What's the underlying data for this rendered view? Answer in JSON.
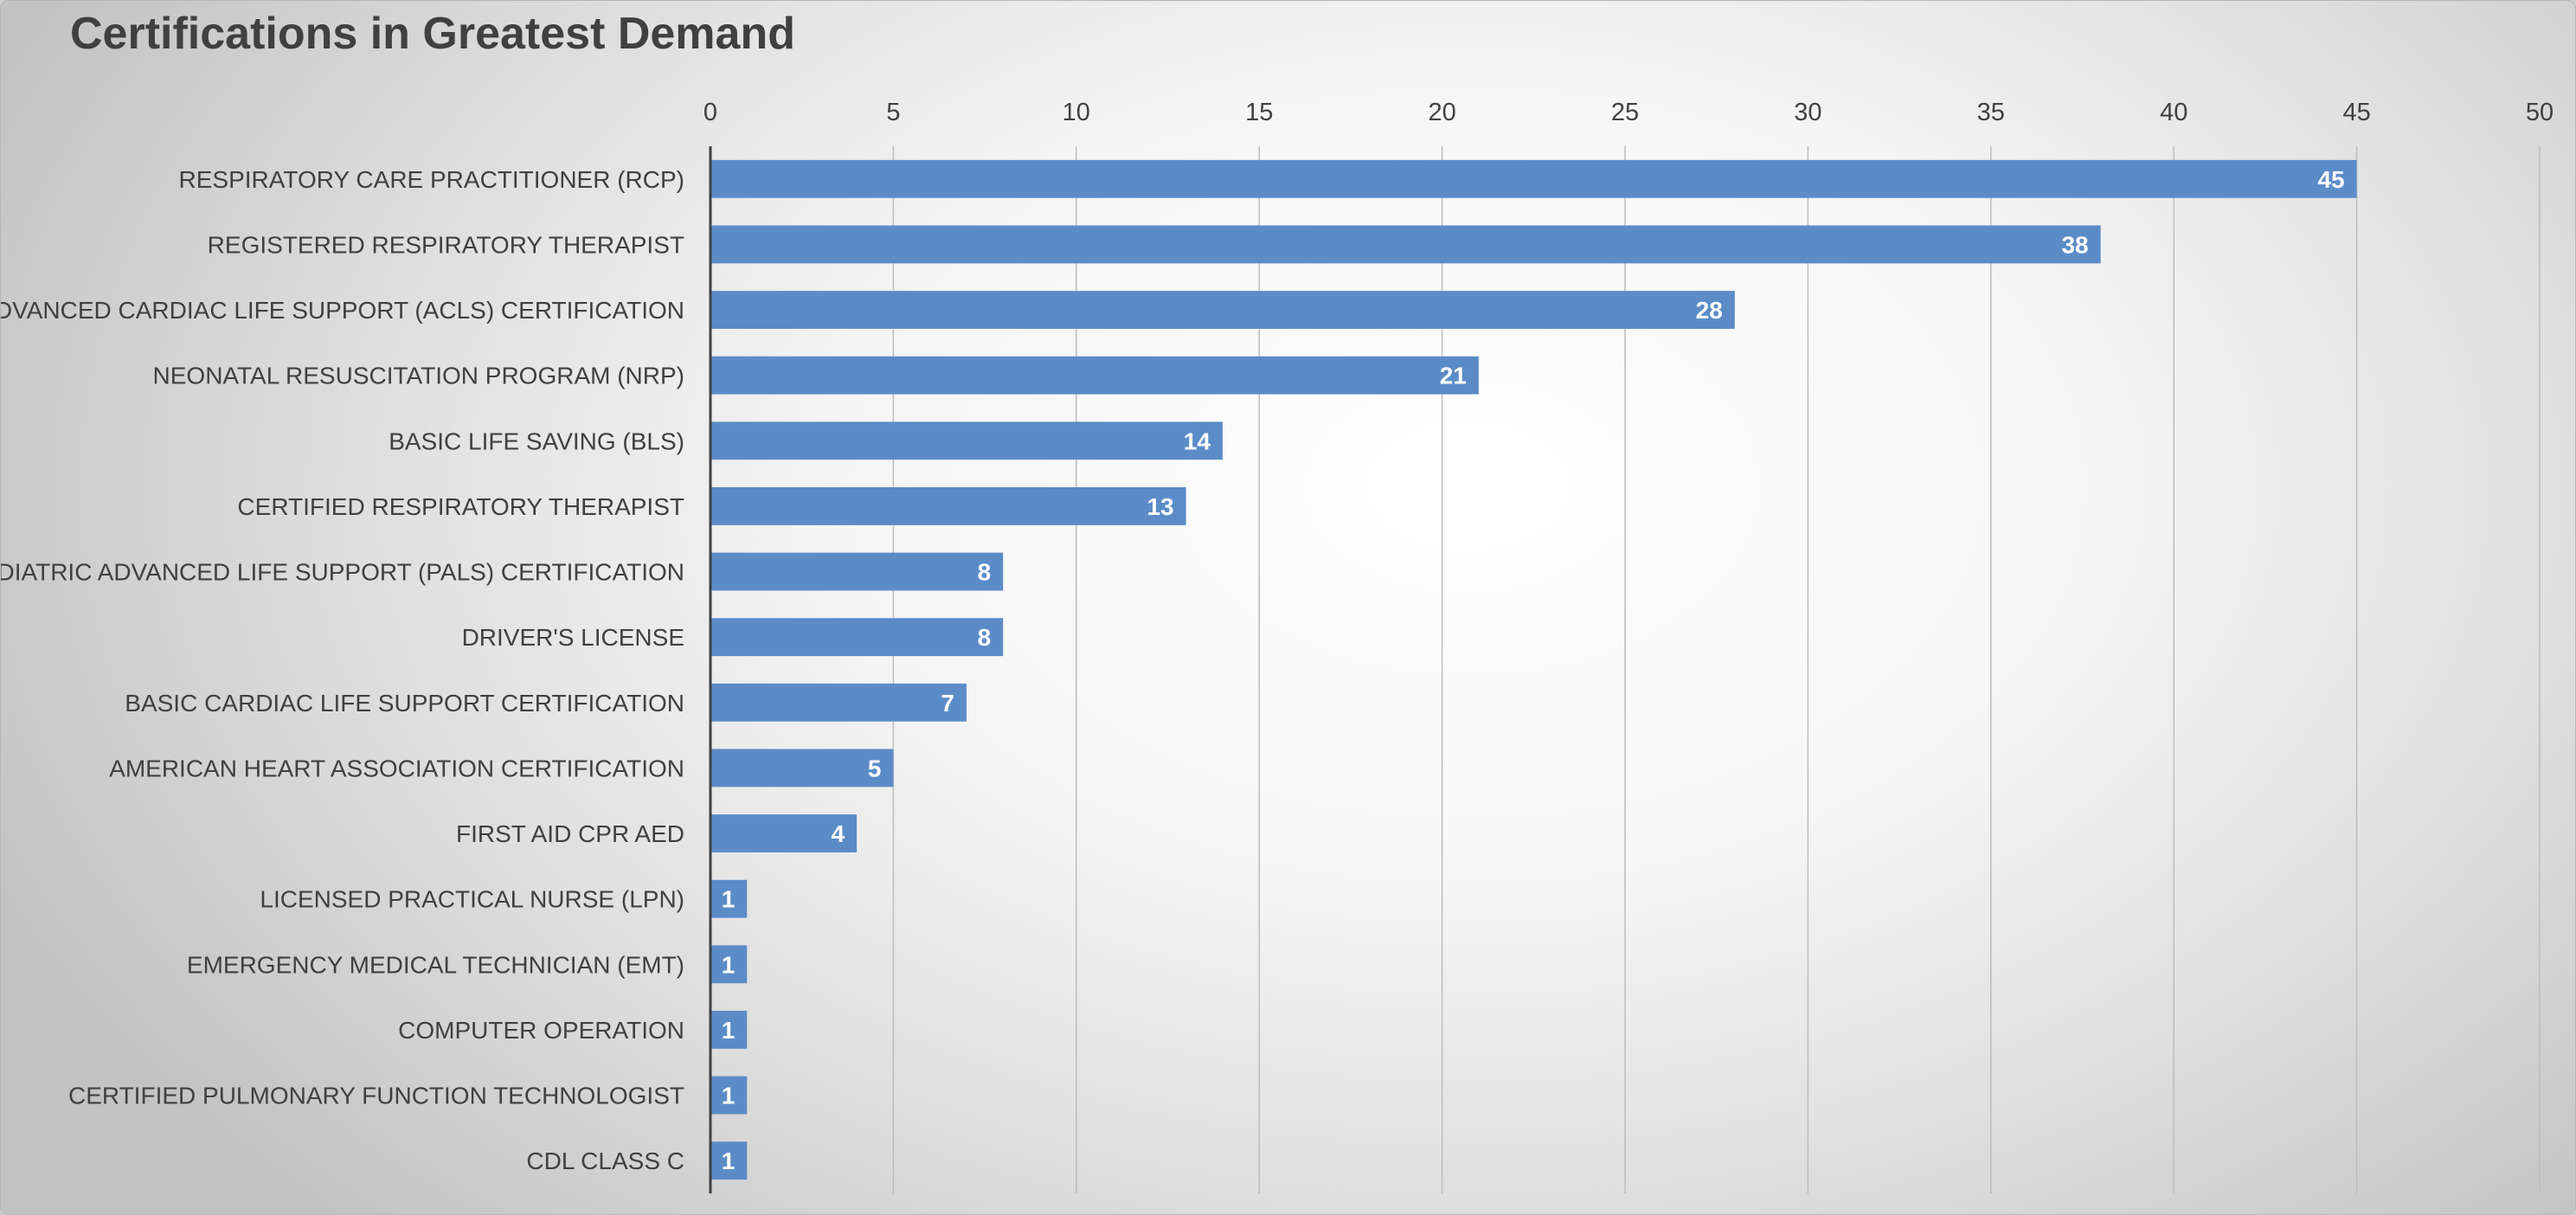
{
  "chart_data": {
    "type": "bar",
    "orientation": "horizontal",
    "title": "Certifications in Greatest Demand",
    "xlabel": "",
    "ylabel": "",
    "xlim": [
      0,
      50
    ],
    "x_ticks": [
      0,
      5,
      10,
      15,
      20,
      25,
      30,
      35,
      40,
      45,
      50
    ],
    "x_tick_position": "top",
    "grid": true,
    "legend": "none",
    "bar_color": "#5b8cc8",
    "categories": [
      "RESPIRATORY CARE PRACTITIONER (RCP)",
      "REGISTERED RESPIRATORY THERAPIST",
      "ADVANCED CARDIAC LIFE SUPPORT (ACLS) CERTIFICATION",
      "NEONATAL RESUSCITATION PROGRAM (NRP)",
      "BASIC LIFE SAVING (BLS)",
      "CERTIFIED RESPIRATORY THERAPIST",
      "PEDIATRIC ADVANCED LIFE SUPPORT (PALS) CERTIFICATION",
      "DRIVER'S LICENSE",
      "BASIC CARDIAC LIFE SUPPORT CERTIFICATION",
      "AMERICAN HEART ASSOCIATION CERTIFICATION",
      "FIRST AID CPR AED",
      "LICENSED PRACTICAL NURSE (LPN)",
      "EMERGENCY MEDICAL TECHNICIAN (EMT)",
      "COMPUTER OPERATION",
      "CERTIFIED PULMONARY FUNCTION TECHNOLOGIST",
      "CDL CLASS C"
    ],
    "values": [
      45,
      38,
      28,
      21,
      14,
      13,
      8,
      8,
      7,
      5,
      4,
      1,
      1,
      1,
      1,
      1
    ]
  }
}
